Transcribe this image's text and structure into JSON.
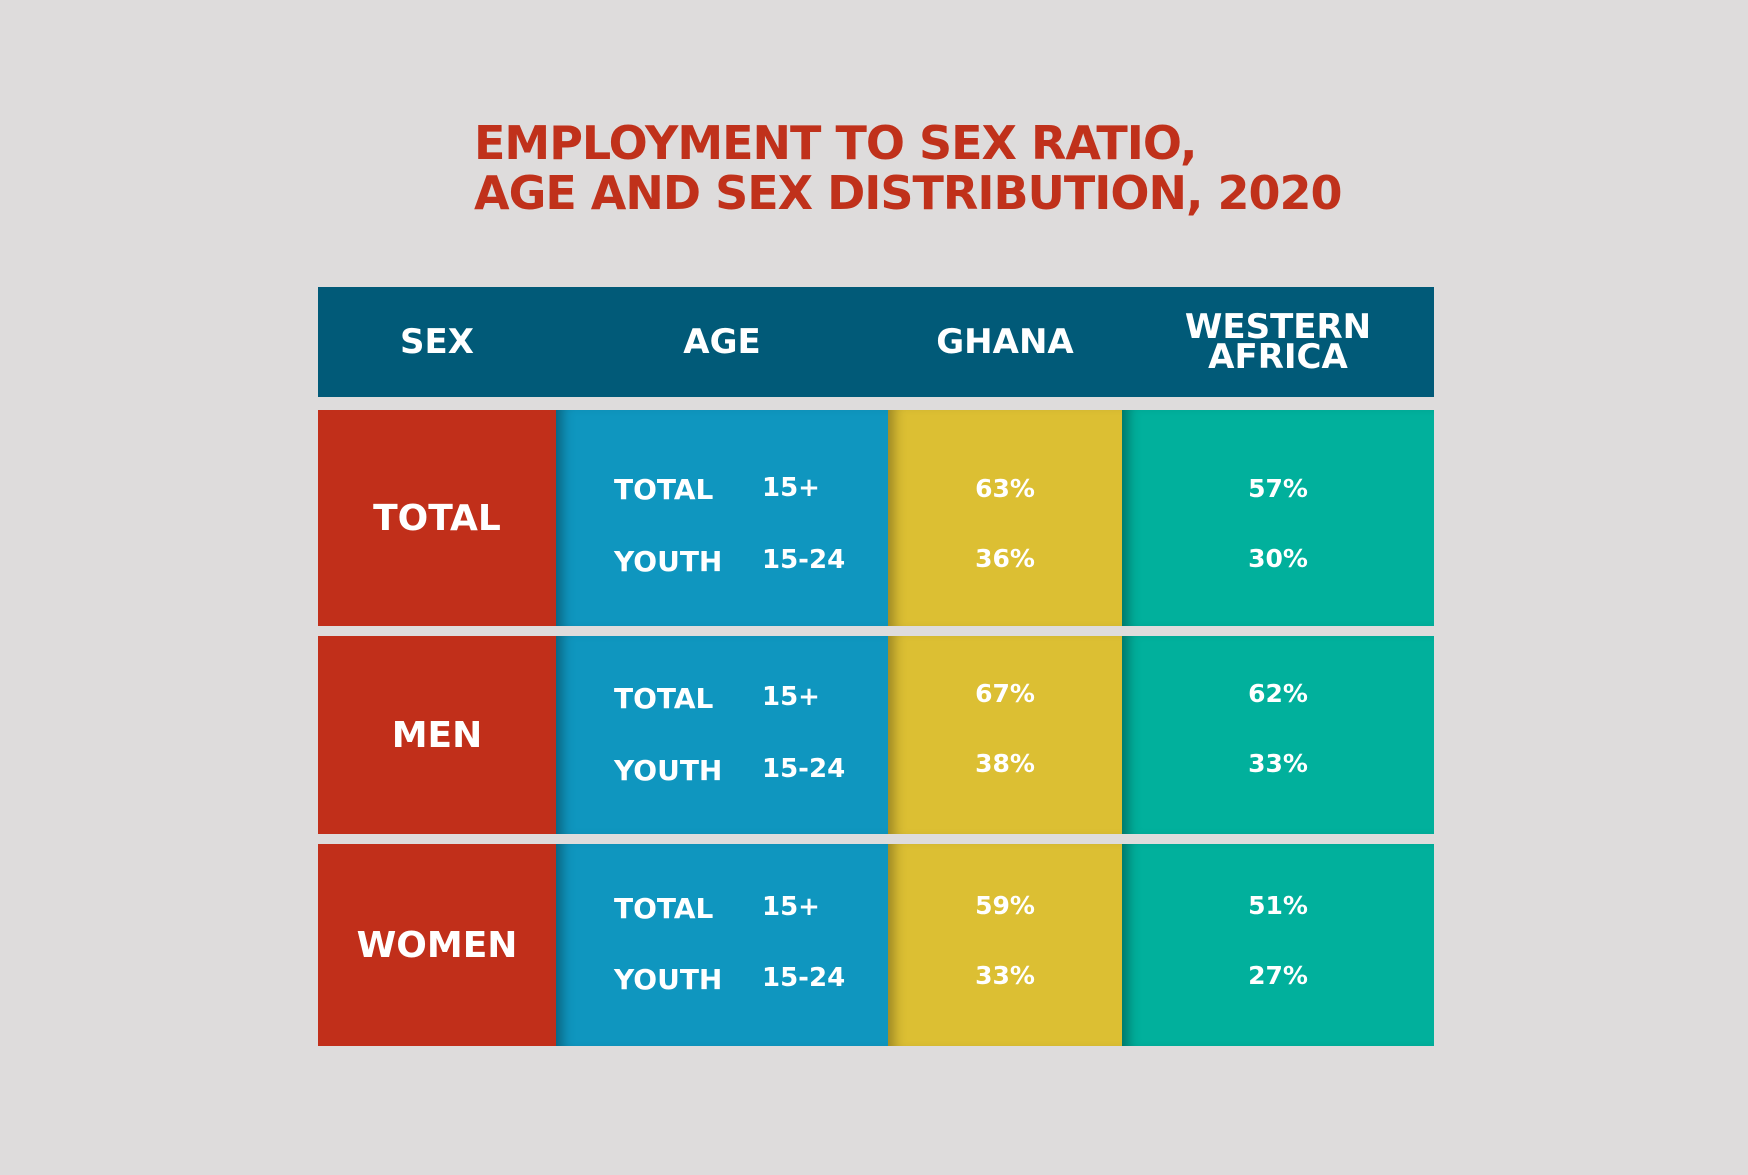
{
  "chart_data": {
    "type": "table",
    "title_lines": [
      "EMPLOYMENT TO SEX RATIO,",
      "AGE AND SEX DISTRIBUTION, 2020"
    ],
    "columns": [
      "SEX",
      "AGE",
      "GHANA",
      "WESTERN\nAFRICA"
    ],
    "rows": [
      {
        "sex": "TOTAL",
        "ages": [
          {
            "name": "TOTAL",
            "range": "15+",
            "ghana": "63%",
            "western_africa": "57%"
          },
          {
            "name": "YOUTH",
            "range": "15-24",
            "ghana": "36%",
            "western_africa": "30%"
          }
        ]
      },
      {
        "sex": "MEN",
        "ages": [
          {
            "name": "TOTAL",
            "range": "15+",
            "ghana": "67%",
            "western_africa": "62%"
          },
          {
            "name": "YOUTH",
            "range": "15-24",
            "ghana": "38%",
            "western_africa": "33%"
          }
        ]
      },
      {
        "sex": "WOMEN",
        "ages": [
          {
            "name": "TOTAL",
            "range": "15+",
            "ghana": "59%",
            "western_africa": "51%"
          },
          {
            "name": "YOUTH",
            "range": "15-24",
            "ghana": "33%",
            "western_africa": "27%"
          }
        ]
      }
    ]
  },
  "colors": {
    "background": "#dedcdc",
    "title": "#c0311b",
    "header": "#015a78",
    "sex_column": "#c12f1a",
    "age_column": "#0f96bf",
    "ghana_column": "#dcbf33",
    "western_africa_column": "#01b09c"
  }
}
